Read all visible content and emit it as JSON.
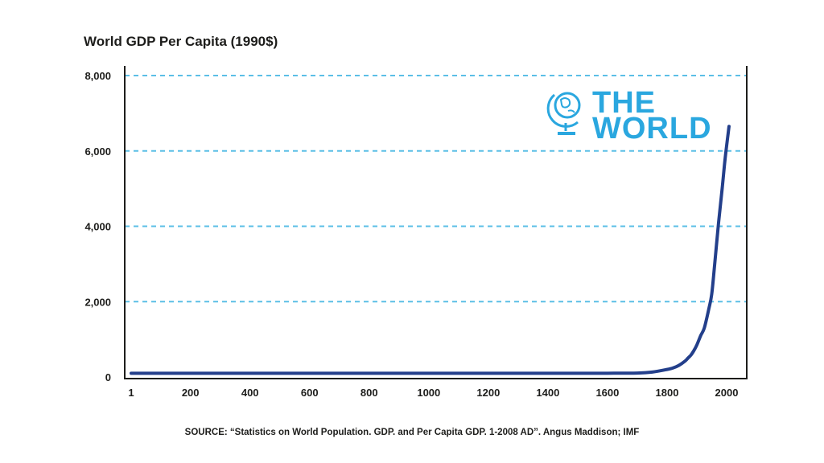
{
  "chart_data": {
    "type": "line",
    "title": "World GDP Per Capita (1990$)",
    "xlabel": "",
    "ylabel": "",
    "xlim": [
      1,
      2008
    ],
    "ylim": [
      0,
      8000
    ],
    "x_ticks": [
      {
        "value": 1,
        "label": "1"
      },
      {
        "value": 200,
        "label": "200"
      },
      {
        "value": 400,
        "label": "400"
      },
      {
        "value": 600,
        "label": "600"
      },
      {
        "value": 800,
        "label": "800"
      },
      {
        "value": 1000,
        "label": "1000"
      },
      {
        "value": 1200,
        "label": "1200"
      },
      {
        "value": 1400,
        "label": "1400"
      },
      {
        "value": 1600,
        "label": "1600"
      },
      {
        "value": 1800,
        "label": "1800"
      },
      {
        "value": 2000,
        "label": "2000"
      }
    ],
    "y_ticks": [
      {
        "value": 0,
        "label": "0"
      },
      {
        "value": 2000,
        "label": "2,000"
      },
      {
        "value": 4000,
        "label": "4,000"
      },
      {
        "value": 6000,
        "label": "6,000"
      },
      {
        "value": 8000,
        "label": "8,000"
      }
    ],
    "grid": "horizontal-dashed",
    "line_color": "#233f8b",
    "grid_color": "#5bbfe6",
    "series": [
      {
        "x": [
          1,
          1000,
          1500,
          1600,
          1700,
          1750,
          1800,
          1820,
          1840,
          1860,
          1870,
          1880,
          1890,
          1900,
          1913,
          1925,
          1940,
          1950,
          1960,
          1973,
          1985,
          1995,
          2008
        ],
        "values": [
          100,
          100,
          100,
          100,
          105,
          130,
          200,
          240,
          310,
          420,
          500,
          580,
          700,
          850,
          1100,
          1300,
          1800,
          2200,
          3000,
          4100,
          5000,
          5800,
          6650
        ]
      }
    ]
  },
  "brand": {
    "line1": "THE",
    "line2": "WORLD",
    "icon": "globe-icon",
    "color": "#2aa7df"
  },
  "source": "SOURCE: “Statistics on World Population. GDP. and Per Capita GDP. 1-2008 AD”. Angus Maddison; IMF"
}
